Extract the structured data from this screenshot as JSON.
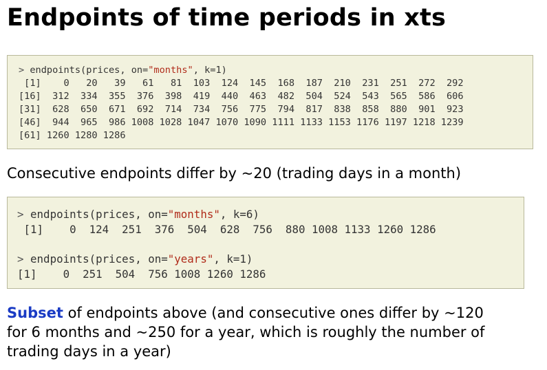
{
  "title": "Endpoints of time periods in xts",
  "box1": {
    "prompt": "> ",
    "cmd_before": "endpoints(prices, on=",
    "cmd_string": "\"months\"",
    "cmd_after": ", k=1)",
    "output": [
      " [1]    0   20   39   61   81  103  124  145  168  187  210  231  251  272  292",
      "[16]  312  334  355  376  398  419  440  463  482  504  524  543  565  586  606",
      "[31]  628  650  671  692  714  734  756  775  794  817  838  858  880  901  923",
      "[46]  944  965  986 1008 1028 1047 1070 1090 1111 1133 1153 1176 1197 1218 1239",
      "[61] 1260 1280 1286"
    ]
  },
  "para1": "Consecutive endpoints differ by ~20 (trading days in a month)",
  "box2": {
    "cmd1_prompt": "> ",
    "cmd1_before": "endpoints(prices, on=",
    "cmd1_string": "\"months\"",
    "cmd1_after": ", k=6)",
    "out1": " [1]    0  124  251  376  504  628  756  880 1008 1133 1260 1286",
    "cmd2_prompt": "> ",
    "cmd2_before": "endpoints(prices, on=",
    "cmd2_string": "\"years\"",
    "cmd2_after": ", k=1)",
    "out2": "[1]    0  251  504  756 1008 1260 1286"
  },
  "para2": {
    "highlight": "Subset",
    "line1_rest": " of endpoints above (and consecutive ones differ by ~120",
    "line2": "for 6 months and ~250 for a year, which is roughly the number of",
    "line3": "trading days in a year)"
  },
  "colors": {
    "code_bg": "#f2f2de",
    "code_border": "#b8b89a",
    "string": "#b02b1a",
    "highlight": "#1a3bc4"
  }
}
